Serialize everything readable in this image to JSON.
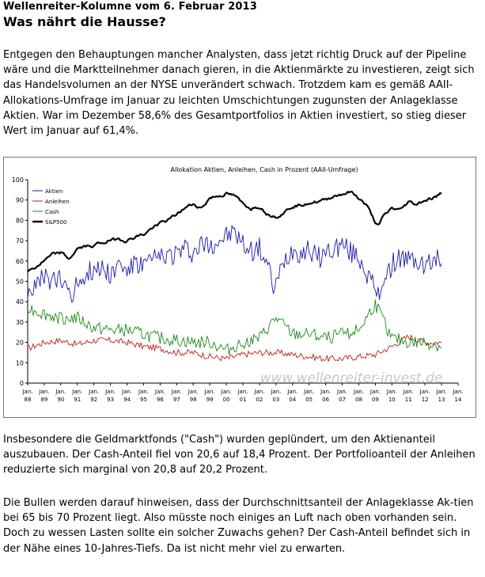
{
  "header": {
    "kolumne": "Wellenreiter-Kolumne vom 6. Februar 2013",
    "title": "Was nährt die Hausse?"
  },
  "paragraphs": {
    "p1": "Entgegen den Behauptungen mancher Analysten, dass jetzt richtig Druck auf der Pipeline wäre und die Marktteilnehmer danach gieren, in die Aktienmärkte zu investieren, zeigt sich das Handelsvolumen an der NYSE unverändert schwach. Trotzdem kam es gemäß AAII-Allokations-Umfrage im Januar zu leichten Umschichtungen zugunsten der Anlageklasse Aktien. War im Dezember 58,6% des Gesamtportfolios in Aktien investiert, so stieg dieser Wert im Januar auf 61,4%.",
    "p2": "Insbesondere die Geldmarktfonds (\"Cash\") wurden geplündert, um den Aktienanteil auszubauen. Der Cash-Anteil fiel von 20,6 auf 18,4 Prozent. Der Portfolioanteil der Anleihen reduzierte sich marginal von 20,8 auf 20,2 Prozent.",
    "p3": "Die Bullen werden darauf hinweisen, dass der Durchschnittsanteil der Anlageklasse Ak-tien bei 65 bis 70 Prozent liegt. Also müsste noch einiges an Luft nach oben vorhanden sein. Doch zu wessen Lasten sollte ein solcher Zuwachs gehen? Der Cash-Anteil befindet sich in der Nähe eines 10-Jahres-Tiefs. Da ist nicht mehr viel zu erwarten."
  },
  "chart_data": {
    "type": "line",
    "title": "Allokation Aktien, Anleihen, Cash in Prozent (AAII-Umfrage)",
    "watermark": "www.wellenreiter-invest.de",
    "ylim": [
      0,
      100
    ],
    "yticks": [
      0,
      10,
      20,
      30,
      40,
      50,
      60,
      70,
      80,
      90,
      100
    ],
    "xlim": [
      1988,
      2014
    ],
    "xtick_top": "Jan.",
    "xtick_years": [
      "88",
      "89",
      "90",
      "91",
      "92",
      "93",
      "94",
      "95",
      "96",
      "97",
      "98",
      "99",
      "00",
      "01",
      "02",
      "03",
      "04",
      "05",
      "06",
      "07",
      "08",
      "09",
      "10",
      "11",
      "12",
      "13",
      "14"
    ],
    "grid": false,
    "legend_position": "top-left",
    "series": [
      {
        "name": "Aktien",
        "color": "#1a1aa8",
        "x": [
          1988,
          1988.5,
          1989,
          1989.5,
          1990,
          1990.5,
          1990.8,
          1991,
          1991.5,
          1992,
          1992.5,
          1993,
          1993.5,
          1994,
          1994.5,
          1995,
          1995.5,
          1996,
          1996.5,
          1997,
          1997.5,
          1998,
          1998.5,
          1999,
          1999.5,
          2000,
          2000.5,
          2001,
          2001.5,
          2002,
          2002.5,
          2002.8,
          2003,
          2003.5,
          2004,
          2004.5,
          2005,
          2005.5,
          2006,
          2006.5,
          2007,
          2007.5,
          2008,
          2008.5,
          2009,
          2009.2,
          2009.5,
          2010,
          2010.5,
          2011,
          2011.5,
          2012,
          2012.5,
          2013
        ],
        "y": [
          46,
          47,
          52,
          50,
          50,
          47,
          43,
          50,
          54,
          56,
          57,
          54,
          58,
          56,
          58,
          58,
          60,
          62,
          63,
          64,
          66,
          64,
          68,
          68,
          70,
          72,
          74,
          68,
          65,
          66,
          58,
          47,
          48,
          60,
          66,
          64,
          66,
          61,
          64,
          66,
          68,
          64,
          62,
          54,
          45,
          42,
          52,
          58,
          62,
          60,
          60,
          57,
          60,
          61
        ]
      },
      {
        "name": "Anleihen",
        "color": "#c41a1a",
        "x": [
          1988,
          1989,
          1990,
          1991,
          1992,
          1993,
          1994,
          1995,
          1996,
          1997,
          1998,
          1999,
          2000,
          2001,
          2002,
          2003,
          2004,
          2005,
          2006,
          2007,
          2008,
          2009,
          2010,
          2011,
          2012,
          2013
        ],
        "y": [
          17,
          20,
          21,
          19,
          21,
          21,
          20,
          18,
          17,
          15,
          15,
          13,
          12,
          14,
          15,
          15,
          14,
          13,
          12,
          12,
          13,
          14,
          18,
          23,
          20,
          20
        ]
      },
      {
        "name": "Cash",
        "color": "#1a8a1a",
        "x": [
          1988,
          1989,
          1990,
          1991,
          1992,
          1993,
          1994,
          1995,
          1996,
          1997,
          1998,
          1999,
          2000,
          2001,
          2002,
          2003,
          2004,
          2005,
          2006,
          2007,
          2008,
          2009,
          2010,
          2011,
          2012,
          2013
        ],
        "y": [
          37,
          34,
          32,
          32,
          27,
          26,
          26,
          24,
          22,
          21,
          20,
          20,
          16,
          20,
          22,
          32,
          24,
          24,
          22,
          24,
          26,
          39,
          22,
          20,
          20,
          18
        ]
      },
      {
        "name": "S&P500",
        "color": "#000000",
        "x": [
          1988,
          1988.5,
          1989,
          1989.5,
          1990,
          1990.5,
          1991,
          1991.5,
          1992,
          1992.5,
          1993,
          1993.5,
          1994,
          1994.5,
          1995,
          1995.5,
          1996,
          1996.5,
          1997,
          1997.5,
          1998,
          1998.5,
          1999,
          1999.5,
          2000,
          2000.5,
          2001,
          2001.5,
          2002,
          2002.5,
          2003,
          2003.5,
          2004,
          2004.5,
          2005,
          2005.5,
          2006,
          2006.5,
          2007,
          2007.5,
          2008,
          2008.5,
          2009,
          2009.2,
          2009.5,
          2010,
          2010.5,
          2011,
          2011.5,
          2012,
          2012.5,
          2013
        ],
        "y": [
          55,
          57,
          60,
          63,
          64,
          61,
          66,
          67,
          68,
          69,
          70,
          71,
          70,
          72,
          73,
          76,
          79,
          80,
          83,
          86,
          88,
          86,
          91,
          92,
          93,
          92,
          88,
          86,
          87,
          83,
          82,
          84,
          87,
          88,
          89,
          89,
          90,
          92,
          93,
          94,
          91,
          87,
          79,
          77,
          82,
          86,
          85,
          89,
          88,
          90,
          91,
          93
        ]
      }
    ]
  }
}
